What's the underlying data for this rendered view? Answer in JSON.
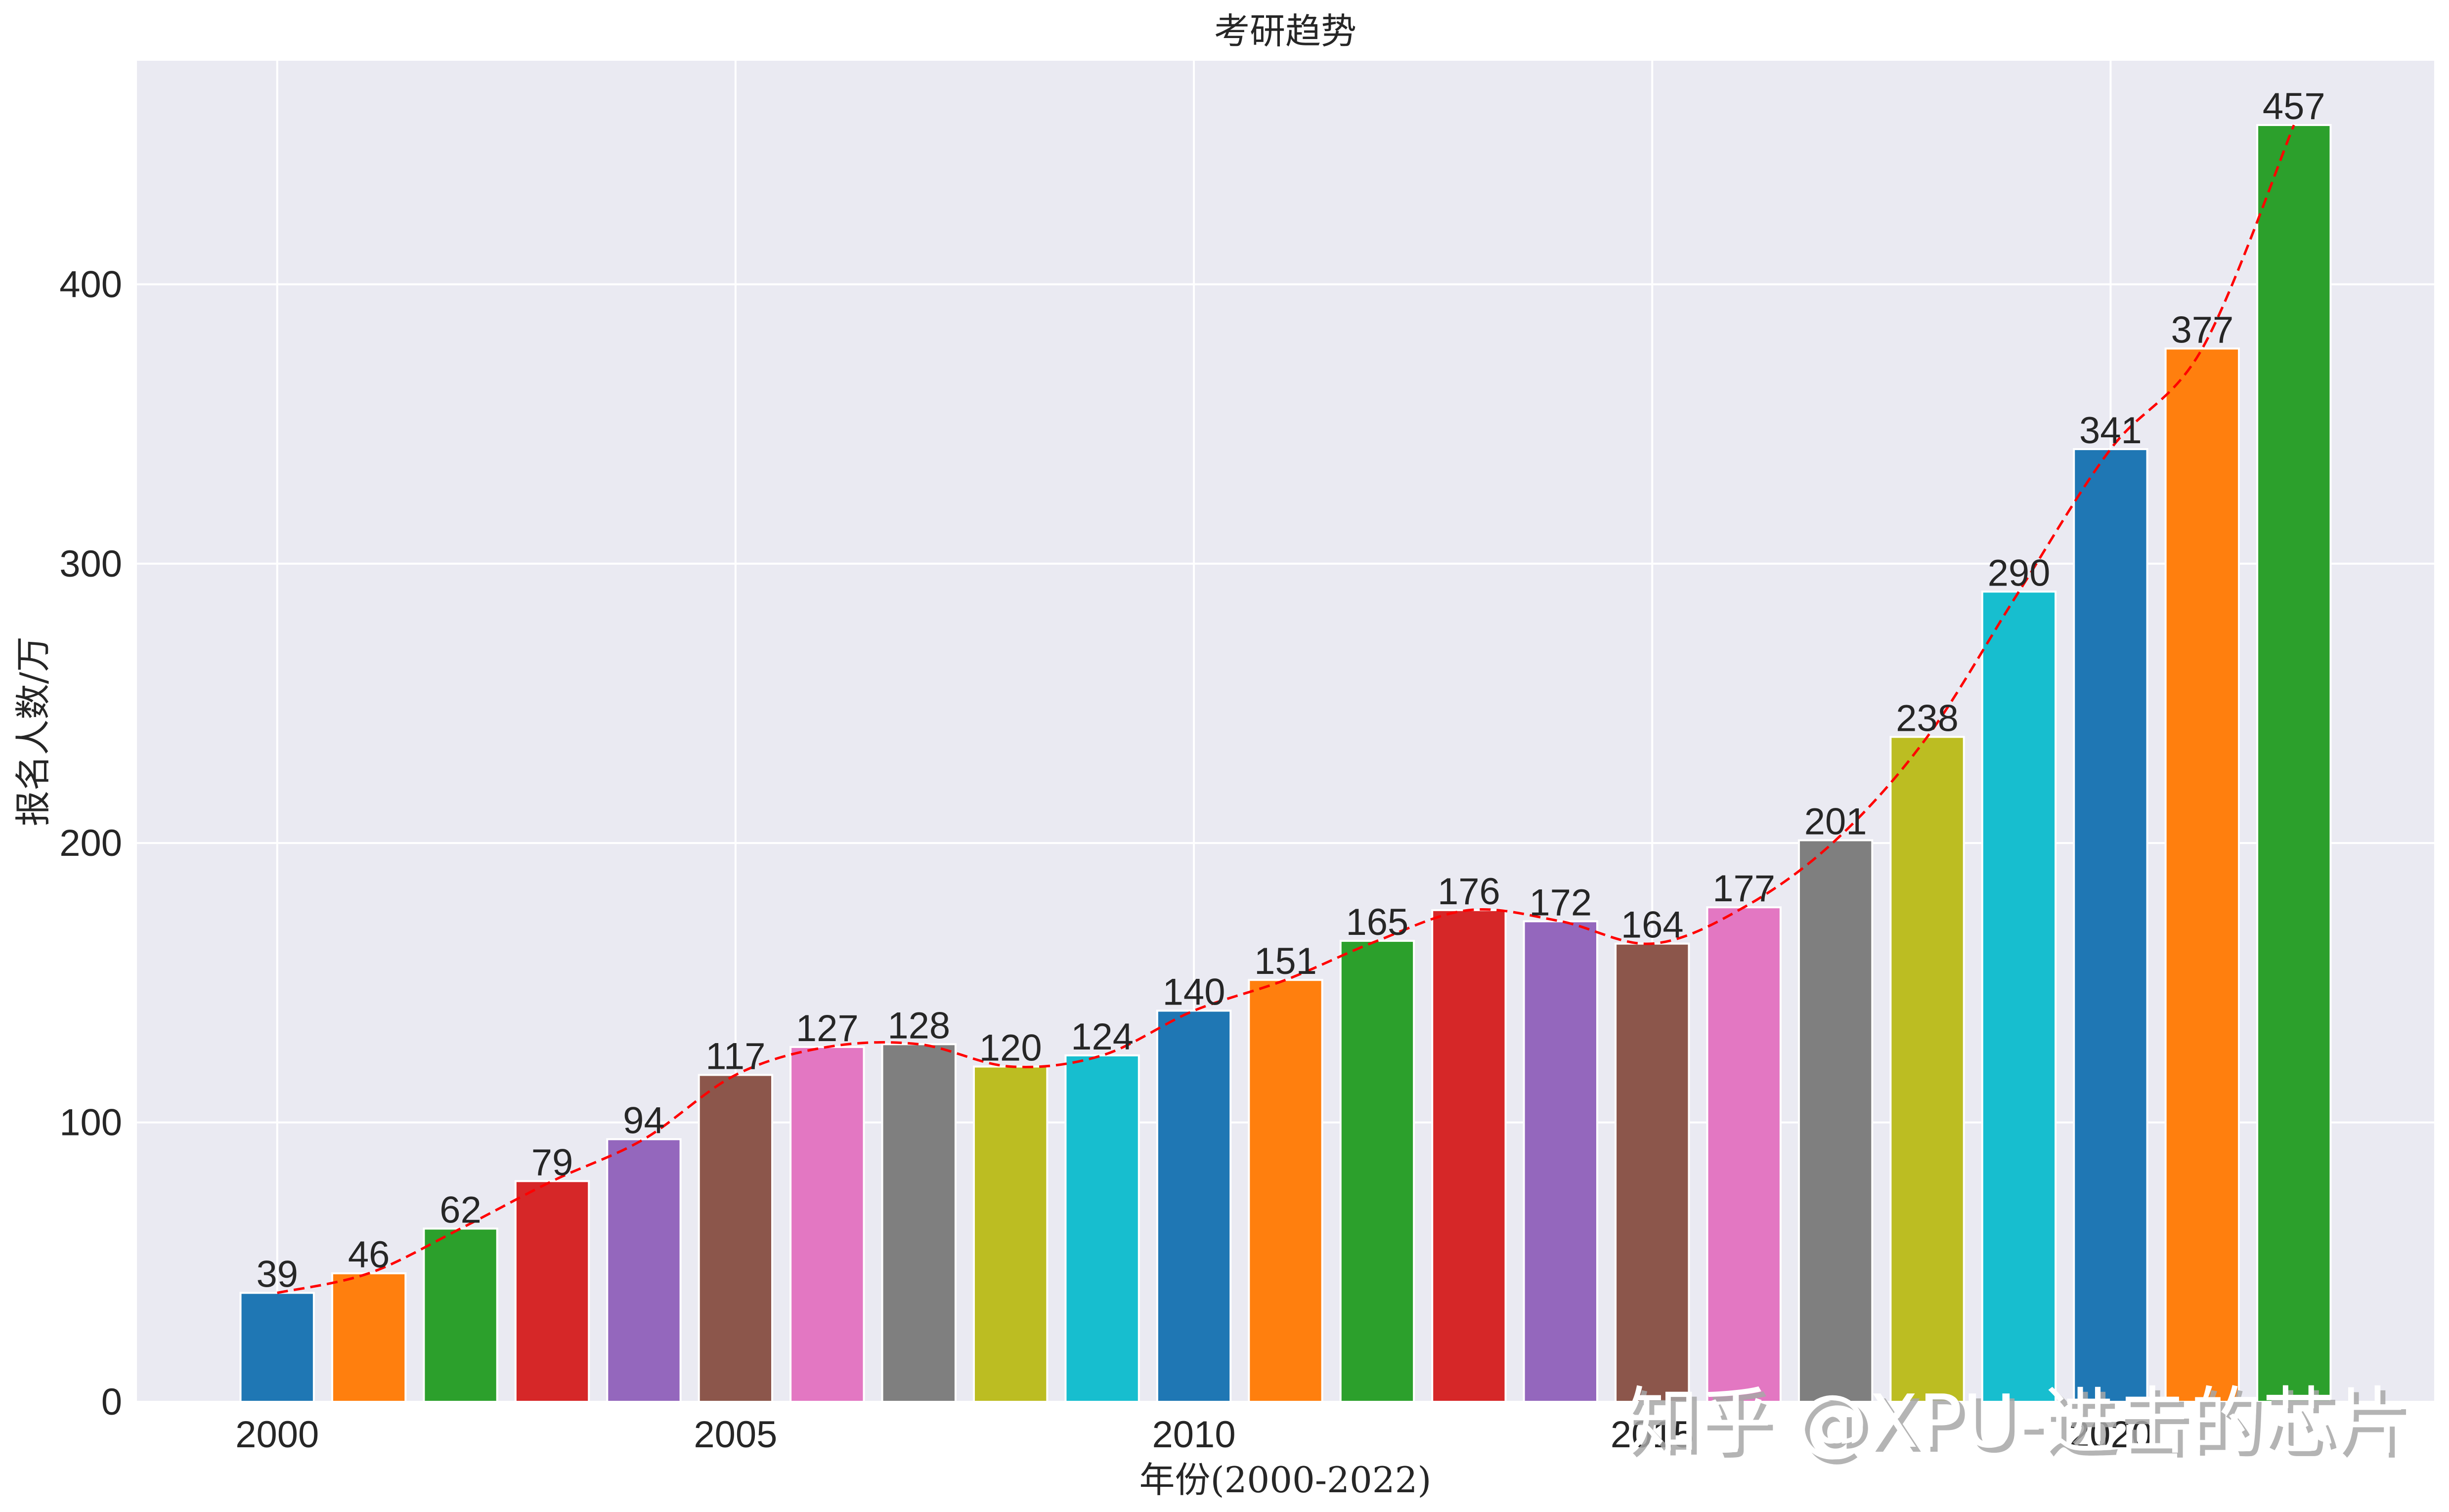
{
  "chart_data": {
    "type": "bar",
    "title": "考研趋势",
    "xlabel": "年份(2000-2022)",
    "ylabel": "报名人数/万",
    "categories": [
      2000,
      2001,
      2002,
      2003,
      2004,
      2005,
      2006,
      2007,
      2008,
      2009,
      2010,
      2011,
      2012,
      2013,
      2014,
      2015,
      2016,
      2017,
      2018,
      2019,
      2020,
      2021,
      2022
    ],
    "values": [
      39,
      46,
      62,
      79,
      94,
      117,
      127,
      128,
      120,
      124,
      140,
      151,
      165,
      176,
      172,
      164,
      177,
      201,
      238,
      290,
      341,
      377,
      457
    ],
    "bar_colors": [
      "#1f77b4",
      "#ff7f0e",
      "#2ca02c",
      "#d62728",
      "#9467bd",
      "#8c564b",
      "#e377c2",
      "#7f7f7f",
      "#bcbd22",
      "#17becf",
      "#1f77b4",
      "#ff7f0e",
      "#2ca02c",
      "#d62728",
      "#9467bd",
      "#8c564b",
      "#e377c2",
      "#7f7f7f",
      "#bcbd22",
      "#17becf",
      "#1f77b4",
      "#ff7f0e",
      "#2ca02c"
    ],
    "overlay_line": {
      "style": "dashed",
      "color": "#ff0000",
      "smoothed": true,
      "follows": "values"
    },
    "data_labels": true,
    "xticks": [
      2000,
      2005,
      2010,
      2015,
      2020
    ],
    "yticks": [
      0,
      100,
      200,
      300,
      400
    ],
    "xlim": [
      1998.47,
      2023.53
    ],
    "ylim": [
      0,
      480
    ],
    "grid": true,
    "background": "#eaeaf2",
    "legend": null
  },
  "watermark": {
    "text": "知乎 @XPU-进击的芯片"
  }
}
